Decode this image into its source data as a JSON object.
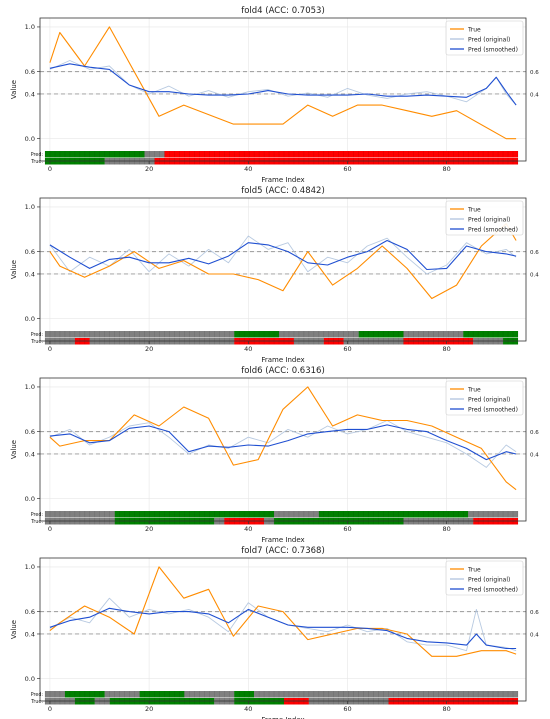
{
  "chart_data": [
    {
      "type": "line",
      "title": "fold4 (ACC: 0.7053)",
      "xlabel": "Frame Index",
      "ylabel": "Value",
      "xlim": [
        -2,
        96
      ],
      "ylim": [
        -0.2,
        1.08
      ],
      "xticks": [
        0,
        20,
        40,
        60,
        80
      ],
      "yticks": [
        0.0,
        0.4,
        0.6,
        1.0
      ],
      "thresholds": [
        0.4,
        0.6
      ],
      "threshold_labels": [
        "0.4",
        "0.6"
      ],
      "strip_labels": [
        "Pred:",
        "True:"
      ],
      "legend_position": "top-right",
      "colors": {
        "true": "#ff8c00",
        "pred_original": "#b0c4de",
        "pred_smoothed": "#1f4fd1",
        "strip_high": "#ff0000",
        "strip_mid": "#808080",
        "strip_low": "#008000"
      },
      "series": [
        {
          "name": "True",
          "x": [
            0,
            2,
            7,
            12,
            22,
            27,
            37,
            47,
            52,
            57,
            62,
            67,
            72,
            77,
            82,
            92,
            94
          ],
          "values": [
            0.68,
            0.95,
            0.65,
            1.0,
            0.2,
            0.3,
            0.13,
            0.13,
            0.3,
            0.2,
            0.3,
            0.3,
            0.25,
            0.2,
            0.25,
            0.0,
            0.0
          ]
        },
        {
          "name": "Pred (original)",
          "x": [
            0,
            4,
            8,
            12,
            16,
            20,
            24,
            28,
            32,
            36,
            40,
            44,
            48,
            52,
            56,
            60,
            64,
            68,
            72,
            76,
            80,
            84,
            88,
            90,
            92,
            94
          ],
          "values": [
            0.62,
            0.7,
            0.62,
            0.65,
            0.48,
            0.4,
            0.47,
            0.38,
            0.43,
            0.37,
            0.42,
            0.44,
            0.38,
            0.41,
            0.37,
            0.45,
            0.39,
            0.36,
            0.4,
            0.42,
            0.38,
            0.33,
            0.45,
            0.55,
            0.4,
            0.3
          ]
        },
        {
          "name": "Pred (smoothed)",
          "x": [
            0,
            4,
            8,
            12,
            16,
            20,
            24,
            28,
            32,
            36,
            40,
            44,
            48,
            52,
            56,
            60,
            64,
            68,
            72,
            76,
            80,
            84,
            88,
            90,
            92,
            94
          ],
          "values": [
            0.63,
            0.67,
            0.64,
            0.62,
            0.48,
            0.42,
            0.42,
            0.4,
            0.39,
            0.39,
            0.4,
            0.43,
            0.4,
            0.39,
            0.39,
            0.39,
            0.4,
            0.38,
            0.38,
            0.39,
            0.38,
            0.37,
            0.45,
            0.55,
            0.42,
            0.3
          ]
        }
      ],
      "strips": {
        "pred": [
          [
            "low",
            0,
            20
          ],
          [
            "mid",
            20,
            24
          ],
          [
            "high",
            24,
            95
          ]
        ],
        "true": [
          [
            "low",
            0,
            12
          ],
          [
            "mid",
            12,
            22
          ],
          [
            "high",
            22,
            95
          ]
        ]
      }
    },
    {
      "type": "line",
      "title": "fold5 (ACC: 0.4842)",
      "xlabel": "Frame Index",
      "ylabel": "Value",
      "xlim": [
        -2,
        96
      ],
      "ylim": [
        -0.2,
        1.08
      ],
      "xticks": [
        0,
        20,
        40,
        60,
        80
      ],
      "yticks": [
        0.0,
        0.4,
        0.6,
        1.0
      ],
      "thresholds": [
        0.4,
        0.6
      ],
      "threshold_labels": [
        "0.4",
        "0.6"
      ],
      "strip_labels": [
        "Pred:",
        "True:"
      ],
      "legend_position": "top-right",
      "colors": {
        "true": "#ff8c00",
        "pred_original": "#b0c4de",
        "pred_smoothed": "#1f4fd1",
        "strip_high": "#ff0000",
        "strip_mid": "#808080",
        "strip_low": "#008000"
      },
      "series": [
        {
          "name": "True",
          "x": [
            0,
            2,
            7,
            12,
            17,
            22,
            27,
            32,
            37,
            42,
            47,
            52,
            57,
            62,
            67,
            72,
            77,
            82,
            87,
            92,
            94
          ],
          "values": [
            0.6,
            0.47,
            0.37,
            0.47,
            0.6,
            0.45,
            0.52,
            0.4,
            0.4,
            0.35,
            0.25,
            0.6,
            0.3,
            0.45,
            0.65,
            0.45,
            0.18,
            0.3,
            0.65,
            0.85,
            0.7
          ]
        },
        {
          "name": "Pred (original)",
          "x": [
            0,
            4,
            8,
            12,
            16,
            20,
            24,
            28,
            32,
            36,
            40,
            44,
            48,
            52,
            56,
            60,
            64,
            68,
            72,
            76,
            80,
            84,
            88,
            92,
            94
          ],
          "values": [
            0.66,
            0.42,
            0.55,
            0.47,
            0.62,
            0.42,
            0.58,
            0.47,
            0.62,
            0.5,
            0.74,
            0.62,
            0.68,
            0.42,
            0.55,
            0.5,
            0.65,
            0.72,
            0.55,
            0.4,
            0.48,
            0.68,
            0.58,
            0.62,
            0.55
          ]
        },
        {
          "name": "Pred (smoothed)",
          "x": [
            0,
            4,
            8,
            12,
            16,
            20,
            24,
            28,
            32,
            36,
            40,
            44,
            48,
            52,
            56,
            60,
            64,
            68,
            72,
            76,
            80,
            84,
            88,
            92,
            94
          ],
          "values": [
            0.66,
            0.55,
            0.45,
            0.53,
            0.55,
            0.5,
            0.5,
            0.54,
            0.49,
            0.56,
            0.68,
            0.66,
            0.6,
            0.5,
            0.48,
            0.55,
            0.6,
            0.7,
            0.62,
            0.44,
            0.45,
            0.65,
            0.6,
            0.58,
            0.56
          ]
        }
      ],
      "strips": {
        "pred": [
          [
            "mid",
            0,
            38
          ],
          [
            "low",
            38,
            47
          ],
          [
            "mid",
            47,
            63
          ],
          [
            "low",
            63,
            72
          ],
          [
            "mid",
            72,
            84
          ],
          [
            "low",
            84,
            95
          ]
        ],
        "true": [
          [
            "mid",
            0,
            6
          ],
          [
            "high",
            6,
            9
          ],
          [
            "mid",
            9,
            38
          ],
          [
            "high",
            38,
            50
          ],
          [
            "mid",
            50,
            56
          ],
          [
            "high",
            56,
            60
          ],
          [
            "mid",
            60,
            72
          ],
          [
            "high",
            72,
            86
          ],
          [
            "mid",
            86,
            92
          ],
          [
            "low",
            92,
            95
          ]
        ]
      }
    },
    {
      "type": "line",
      "title": "fold6 (ACC: 0.6316)",
      "xlabel": "Frame Index",
      "ylabel": "Value",
      "xlim": [
        -2,
        96
      ],
      "ylim": [
        -0.2,
        1.08
      ],
      "xticks": [
        0,
        20,
        40,
        60,
        80
      ],
      "yticks": [
        0.0,
        0.4,
        0.6,
        1.0
      ],
      "thresholds": [
        0.4,
        0.6
      ],
      "threshold_labels": [
        "0.4",
        "0.6"
      ],
      "strip_labels": [
        "Pred:",
        "True:"
      ],
      "legend_position": "top-right",
      "colors": {
        "true": "#ff8c00",
        "pred_original": "#b0c4de",
        "pred_smoothed": "#1f4fd1",
        "strip_high": "#ff0000",
        "strip_mid": "#808080",
        "strip_low": "#008000"
      },
      "series": [
        {
          "name": "True",
          "x": [
            0,
            2,
            7,
            12,
            17,
            22,
            27,
            32,
            37,
            42,
            47,
            52,
            57,
            62,
            67,
            72,
            77,
            82,
            87,
            92,
            94
          ],
          "values": [
            0.55,
            0.47,
            0.52,
            0.52,
            0.75,
            0.65,
            0.82,
            0.72,
            0.3,
            0.35,
            0.8,
            1.0,
            0.65,
            0.75,
            0.7,
            0.7,
            0.65,
            0.55,
            0.45,
            0.15,
            0.08
          ]
        },
        {
          "name": "Pred (original)",
          "x": [
            0,
            4,
            8,
            12,
            16,
            20,
            24,
            28,
            32,
            36,
            40,
            44,
            48,
            52,
            56,
            60,
            64,
            68,
            72,
            76,
            80,
            84,
            88,
            92,
            94
          ],
          "values": [
            0.55,
            0.62,
            0.48,
            0.55,
            0.65,
            0.68,
            0.55,
            0.4,
            0.48,
            0.45,
            0.55,
            0.5,
            0.62,
            0.55,
            0.65,
            0.58,
            0.62,
            0.7,
            0.6,
            0.55,
            0.5,
            0.4,
            0.28,
            0.48,
            0.42
          ]
        },
        {
          "name": "Pred (smoothed)",
          "x": [
            0,
            4,
            8,
            12,
            16,
            20,
            24,
            28,
            32,
            36,
            40,
            44,
            48,
            52,
            56,
            60,
            64,
            68,
            72,
            76,
            80,
            84,
            88,
            92,
            94
          ],
          "values": [
            0.56,
            0.58,
            0.5,
            0.52,
            0.63,
            0.65,
            0.6,
            0.42,
            0.47,
            0.46,
            0.48,
            0.47,
            0.52,
            0.58,
            0.6,
            0.62,
            0.62,
            0.66,
            0.62,
            0.6,
            0.52,
            0.45,
            0.35,
            0.42,
            0.4
          ]
        }
      ],
      "strips": {
        "pred": [
          [
            "mid",
            0,
            14
          ],
          [
            "low",
            14,
            46
          ],
          [
            "mid",
            46,
            55
          ],
          [
            "low",
            55,
            85
          ],
          [
            "mid",
            85,
            95
          ]
        ],
        "true": [
          [
            "mid",
            0,
            14
          ],
          [
            "low",
            14,
            34
          ],
          [
            "mid",
            34,
            36
          ],
          [
            "high",
            36,
            44
          ],
          [
            "mid",
            44,
            46
          ],
          [
            "low",
            46,
            72
          ],
          [
            "mid",
            72,
            86
          ],
          [
            "high",
            86,
            95
          ]
        ]
      }
    },
    {
      "type": "line",
      "title": "fold7 (ACC: 0.7368)",
      "xlabel": "Frame Index",
      "ylabel": "Value",
      "xlim": [
        -2,
        96
      ],
      "ylim": [
        -0.2,
        1.08
      ],
      "xticks": [
        0,
        20,
        40,
        60,
        80
      ],
      "yticks": [
        0.0,
        0.4,
        0.6,
        1.0
      ],
      "thresholds": [
        0.4,
        0.6
      ],
      "threshold_labels": [
        "0.4",
        "0.6"
      ],
      "strip_labels": [
        "Pred:",
        "True:"
      ],
      "legend_position": "top-right",
      "colors": {
        "true": "#ff8c00",
        "pred_original": "#b0c4de",
        "pred_smoothed": "#1f4fd1",
        "strip_high": "#ff0000",
        "strip_mid": "#808080",
        "strip_low": "#008000"
      },
      "series": [
        {
          "name": "True",
          "x": [
            0,
            2,
            7,
            12,
            17,
            22,
            27,
            32,
            37,
            42,
            47,
            52,
            57,
            62,
            67,
            72,
            77,
            82,
            87,
            92,
            94
          ],
          "values": [
            0.43,
            0.5,
            0.65,
            0.55,
            0.4,
            1.0,
            0.72,
            0.8,
            0.38,
            0.65,
            0.6,
            0.35,
            0.4,
            0.45,
            0.45,
            0.4,
            0.2,
            0.2,
            0.25,
            0.25,
            0.22
          ]
        },
        {
          "name": "Pred (original)",
          "x": [
            0,
            4,
            8,
            12,
            16,
            20,
            24,
            28,
            32,
            36,
            40,
            44,
            48,
            52,
            56,
            60,
            64,
            68,
            72,
            76,
            80,
            84,
            86,
            88,
            92,
            94
          ],
          "values": [
            0.45,
            0.55,
            0.5,
            0.72,
            0.55,
            0.62,
            0.58,
            0.62,
            0.55,
            0.42,
            0.68,
            0.55,
            0.48,
            0.45,
            0.42,
            0.48,
            0.42,
            0.45,
            0.33,
            0.3,
            0.3,
            0.25,
            0.62,
            0.3,
            0.28,
            0.25
          ]
        },
        {
          "name": "Pred (smoothed)",
          "x": [
            0,
            4,
            8,
            12,
            16,
            20,
            24,
            28,
            32,
            36,
            40,
            44,
            48,
            52,
            56,
            60,
            64,
            68,
            72,
            76,
            80,
            84,
            86,
            88,
            92,
            94
          ],
          "values": [
            0.46,
            0.52,
            0.55,
            0.63,
            0.6,
            0.58,
            0.6,
            0.6,
            0.58,
            0.5,
            0.62,
            0.55,
            0.48,
            0.46,
            0.46,
            0.46,
            0.45,
            0.43,
            0.36,
            0.33,
            0.32,
            0.3,
            0.4,
            0.3,
            0.27,
            0.27
          ]
        }
      ],
      "strips": {
        "pred": [
          [
            "mid",
            0,
            4
          ],
          [
            "low",
            4,
            12
          ],
          [
            "mid",
            12,
            19
          ],
          [
            "low",
            19,
            28
          ],
          [
            "mid",
            28,
            38
          ],
          [
            "low",
            38,
            42
          ],
          [
            "mid",
            42,
            95
          ]
        ],
        "true": [
          [
            "mid",
            0,
            6
          ],
          [
            "low",
            6,
            10
          ],
          [
            "mid",
            10,
            13
          ],
          [
            "low",
            13,
            34
          ],
          [
            "mid",
            34,
            38
          ],
          [
            "low",
            38,
            48
          ],
          [
            "high",
            48,
            53
          ],
          [
            "mid",
            53,
            69
          ],
          [
            "high",
            69,
            95
          ]
        ]
      }
    }
  ]
}
